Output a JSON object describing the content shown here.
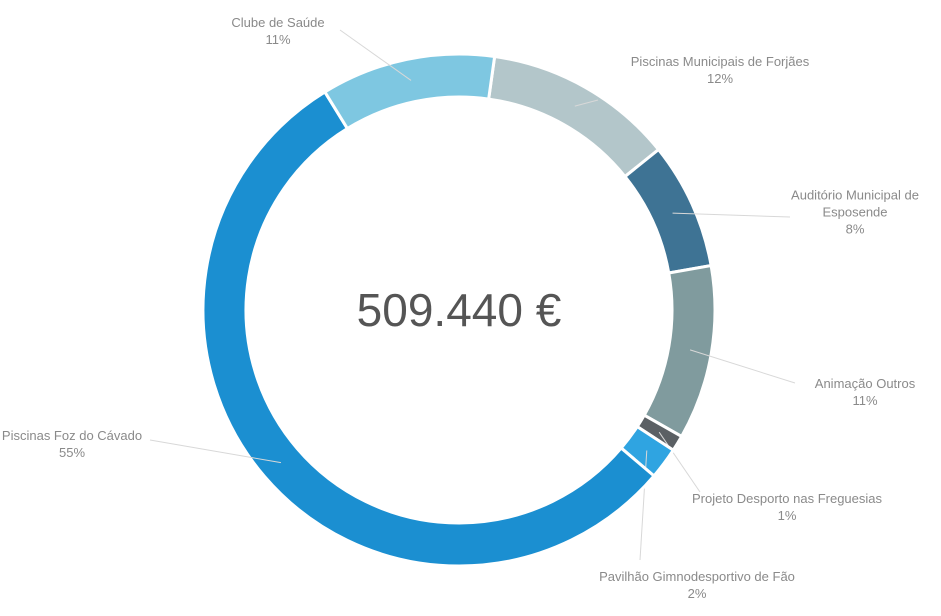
{
  "chart_data": {
    "type": "donut",
    "center_label": "509.440 €",
    "categories": [
      "Piscinas Municipais de Forjães",
      "Auditório Municipal de Esposende",
      "Animação Outros",
      "Projeto Desporto nas Freguesias",
      "Pavilhão Gimnodesportivo de Fão",
      "Piscinas Foz do Cávado",
      "Clube de Saúde"
    ],
    "values": [
      12,
      8,
      11,
      1,
      2,
      55,
      11
    ],
    "value_labels": [
      "12%",
      "8%",
      "11%",
      "1%",
      "2%",
      "55%",
      "11%"
    ],
    "colors": [
      "#b3c6ca",
      "#3e7394",
      "#809b9e",
      "#5b6064",
      "#2fa4e1",
      "#1b8fd1",
      "#7ec7e1"
    ]
  }
}
